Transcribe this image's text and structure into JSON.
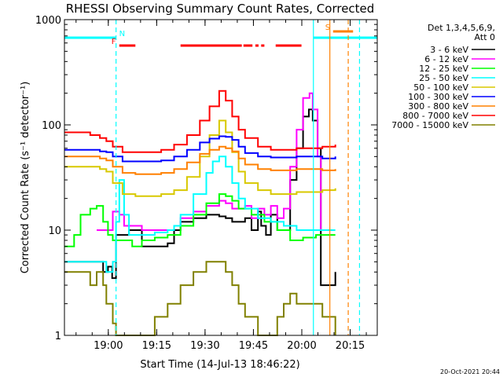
{
  "chart_data": {
    "type": "line",
    "title": "RHESSI Observing Summary Count Rates, Corrected",
    "xlabel": "Start Time (14-Jul-13 18:46:22)",
    "ylabel": "Corrected Count Rate (s⁻¹ detector⁻¹)",
    "yscale": "log",
    "ylim": [
      1,
      1000
    ],
    "xlim_minutes": [
      0,
      97
    ],
    "x_ticks": [
      {
        "label": "19:00",
        "value": 13.6
      },
      {
        "label": "19:15",
        "value": 28.6
      },
      {
        "label": "19:30",
        "value": 43.6
      },
      {
        "label": "19:45",
        "value": 58.6
      },
      {
        "label": "20:00",
        "value": 73.6
      },
      {
        "label": "20:15",
        "value": 88.6
      }
    ],
    "y_ticks": [
      {
        "label": "1",
        "value": 1
      },
      {
        "label": "10",
        "value": 10
      },
      {
        "label": "100",
        "value": 100
      },
      {
        "label": "1000",
        "value": 1000
      }
    ],
    "legend": {
      "header": [
        "Det 1,3,4,5,6,9,",
        "Att 0"
      ],
      "position": "right"
    },
    "series": [
      {
        "name": "3 - 6 keV",
        "color": "#000000",
        "x": [
          0,
          10,
          12,
          13.5,
          14.8,
          16,
          18,
          20,
          24,
          28,
          32,
          34,
          36,
          40,
          44,
          48,
          50,
          52,
          56,
          58,
          60,
          61,
          62.5,
          64,
          66,
          68,
          70,
          72,
          74,
          75.8,
          77,
          78.5,
          79.5,
          82,
          84
        ],
        "y": [
          5,
          5,
          4,
          4.5,
          3.5,
          9,
          9,
          10,
          7,
          7,
          7.5,
          10,
          12,
          13,
          14,
          13.5,
          13,
          12,
          13,
          10,
          15,
          11,
          9,
          14,
          10,
          10,
          30,
          60,
          120,
          140,
          110,
          60,
          3,
          3,
          4
        ]
      },
      {
        "name": "6 - 12 keV",
        "color": "#ff00ff",
        "x": [
          10,
          12,
          13.5,
          15,
          17,
          18.5,
          20,
          24,
          28,
          32,
          34,
          36,
          40,
          44,
          48,
          50,
          52,
          56,
          58,
          60,
          62,
          64,
          66,
          68,
          70,
          72,
          74,
          76,
          77,
          78.5,
          79.5,
          81
        ],
        "y": [
          10,
          10,
          10,
          15,
          14,
          11,
          11,
          10,
          10,
          10,
          11,
          13,
          15,
          17,
          19,
          18,
          16,
          17,
          13,
          16,
          14,
          17,
          13,
          16,
          40,
          90,
          180,
          200,
          140,
          50,
          10,
          10
        ]
      },
      {
        "name": "12 - 25 keV",
        "color": "#00ff00",
        "x": [
          0,
          3,
          5,
          8,
          10,
          12,
          13.5,
          15,
          18,
          21,
          24,
          28,
          32,
          36,
          40,
          44,
          48,
          50,
          52,
          54,
          58,
          62,
          66,
          70,
          74,
          78,
          80,
          84
        ],
        "y": [
          7,
          9,
          14,
          16,
          17,
          12,
          9,
          8,
          8,
          7,
          8,
          8.5,
          9,
          11,
          14,
          18,
          22,
          21,
          19,
          16,
          14,
          12,
          10,
          8,
          8.5,
          9,
          9,
          9
        ]
      },
      {
        "name": "25 - 50 keV",
        "color": "#00ffff",
        "x": [
          0,
          4,
          8,
          11,
          13,
          15,
          16,
          17,
          18.5,
          20,
          24,
          28,
          32,
          34,
          36,
          40,
          44,
          46,
          48,
          50,
          52,
          54,
          56,
          60,
          64,
          68,
          72,
          76,
          80,
          84
        ],
        "y": [
          5,
          5,
          5,
          5,
          4,
          5,
          12,
          30,
          14,
          9,
          9,
          9.5,
          10,
          11,
          14,
          22,
          35,
          45,
          50,
          40,
          28,
          20,
          16,
          13,
          12,
          11,
          10,
          10,
          10,
          10
        ]
      },
      {
        "name": "50 - 100 keV",
        "color": "#d8c800",
        "x": [
          0,
          4,
          8,
          11,
          13,
          15,
          18,
          22,
          26,
          30,
          34,
          38,
          42,
          45,
          48,
          50,
          52,
          54,
          56,
          60,
          64,
          68,
          72,
          76,
          80,
          84
        ],
        "y": [
          40,
          40,
          40,
          38,
          36,
          28,
          22,
          21,
          21,
          22,
          24,
          32,
          50,
          80,
          110,
          85,
          55,
          36,
          28,
          24,
          22,
          22,
          23,
          23,
          24,
          25
        ]
      },
      {
        "name": "100 - 300 keV",
        "color": "#0000ff",
        "x": [
          0,
          4,
          8,
          11,
          13,
          15,
          18,
          22,
          26,
          30,
          34,
          38,
          42,
          45,
          48,
          50,
          52,
          54,
          56,
          60,
          64,
          68,
          72,
          76,
          80,
          84
        ],
        "y": [
          58,
          58,
          58,
          56,
          55,
          50,
          45,
          45,
          45,
          46,
          50,
          58,
          68,
          74,
          78,
          77,
          72,
          62,
          54,
          50,
          49,
          49,
          50,
          50,
          48,
          50
        ]
      },
      {
        "name": "300 - 800 keV",
        "color": "#ff8000",
        "x": [
          0,
          4,
          8,
          11,
          13,
          15,
          18,
          22,
          26,
          30,
          34,
          38,
          42,
          45,
          48,
          50,
          52,
          54,
          56,
          60,
          64,
          68,
          72,
          76,
          80,
          84
        ],
        "y": [
          50,
          50,
          50,
          48,
          46,
          40,
          35,
          34,
          34,
          35,
          38,
          44,
          53,
          58,
          62,
          60,
          56,
          48,
          42,
          38,
          37,
          37,
          38,
          38,
          37,
          38
        ]
      },
      {
        "name": "800 - 7000 keV",
        "color": "#ff0000",
        "x": [
          0,
          4,
          8,
          11,
          13,
          15,
          18,
          22,
          26,
          30,
          34,
          38,
          42,
          45,
          48,
          50,
          52,
          54,
          56,
          60,
          64,
          68,
          72,
          76,
          80,
          84
        ],
        "y": [
          85,
          85,
          80,
          75,
          70,
          62,
          55,
          55,
          55,
          58,
          65,
          80,
          110,
          150,
          210,
          170,
          120,
          90,
          75,
          62,
          58,
          58,
          60,
          60,
          62,
          65
        ]
      },
      {
        "name": "7000 - 15000 keV",
        "color": "#808000",
        "x": [
          0,
          4,
          8,
          10,
          12,
          13,
          14,
          15,
          16,
          18,
          20,
          24,
          28,
          32,
          36,
          40,
          44,
          48,
          50,
          52,
          54,
          56,
          60,
          64,
          66,
          68,
          70,
          72,
          76,
          80,
          84
        ],
        "y": [
          4,
          4,
          3,
          4,
          3,
          2,
          2,
          1.3,
          1,
          1,
          1,
          1,
          1.5,
          2,
          3,
          4,
          5,
          5,
          4,
          3,
          2,
          1.5,
          1,
          1,
          1.5,
          2,
          2.5,
          2,
          2,
          1.5,
          1
        ]
      }
    ],
    "flags": [
      {
        "label": "N",
        "color": "#00ffff",
        "ranges": [
          [
            0,
            16
          ]
        ]
      },
      {
        "label": "F",
        "color": "#ff0000",
        "ranges": [
          [
            17,
            22
          ],
          [
            36,
            55
          ],
          [
            55.5,
            58.3
          ],
          [
            59.2,
            60.2
          ],
          [
            61,
            62
          ],
          [
            65.5,
            73.5
          ]
        ]
      },
      {
        "label": "S",
        "color": "#ff8000",
        "ranges": [
          [
            83.3,
            89.5
          ]
        ]
      }
    ],
    "vlines": [
      {
        "x": 16,
        "color": "#00ffff",
        "style": "dashed"
      },
      {
        "x": 77.2,
        "color": "#00ffff",
        "style": "solid"
      },
      {
        "x": 82.3,
        "color": "#ff8000",
        "style": "solid"
      },
      {
        "x": 88,
        "color": "#ff8000",
        "style": "dashed"
      },
      {
        "x": 91.5,
        "color": "#00ffff",
        "style": "dashed"
      }
    ]
  },
  "footer_date": "20-Oct-2021 20:44"
}
